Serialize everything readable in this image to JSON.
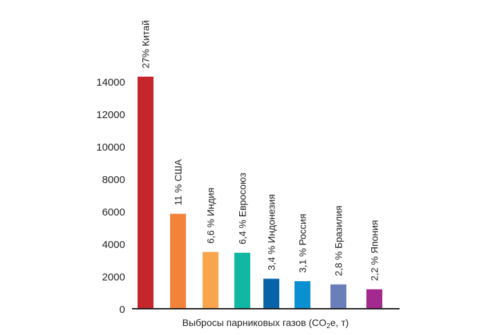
{
  "chart_data": {
    "type": "bar",
    "title": "",
    "xlabel": "Выбросы парниковых газов (CO₂e, т)",
    "xlabel_parts": {
      "before": "Выбросы парниковых газов (CO",
      "sub": "2",
      "after": "e, т)"
    },
    "ylabel": "",
    "ylim": [
      0,
      14000
    ],
    "yticks": [
      0,
      2000,
      4000,
      6000,
      8000,
      10000,
      12000,
      14000
    ],
    "grid": false,
    "categories": [
      "Китай",
      "США",
      "Индия",
      "Евросоюз",
      "Индонезия",
      "Россия",
      "Бразилия",
      "Япония"
    ],
    "values": [
      14300,
      5850,
      3500,
      3450,
      1850,
      1700,
      1500,
      1200
    ],
    "data_labels": [
      "27%  Китай",
      "11 %  США",
      "6,6 %  Индия",
      "6,4 %  Евросоюз",
      "3,4 %  Индонезия",
      "3,1 % Россия",
      "2,8 %  Бразилия",
      "2,2 % Япония"
    ],
    "colors": [
      "#c5252b",
      "#f3833a",
      "#f9a54e",
      "#10b8a3",
      "#0763a8",
      "#0a8fd1",
      "#6a7fba",
      "#a3298e"
    ]
  }
}
